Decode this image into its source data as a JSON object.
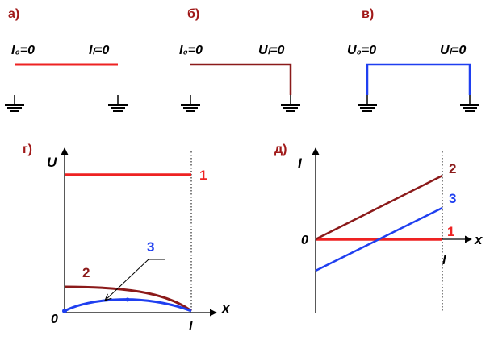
{
  "colors": {
    "red": "#ee2222",
    "brown": "#8b1a1a",
    "blue": "#1f3ff0",
    "label": "#a01818",
    "black": "#000000"
  },
  "panels": {
    "a": {
      "letter": "а)",
      "left_bc": "I₀=0",
      "right_bc": "Iₗ=0"
    },
    "b": {
      "letter": "б)",
      "left_bc": "I₀=0",
      "right_bc": "Uₗ=0"
    },
    "v": {
      "letter": "в)",
      "left_bc": "U₀=0",
      "right_bc": "Uₗ=0"
    },
    "g": {
      "letter": "г)",
      "y_axis": "U",
      "x_axis": "x",
      "origin": "0",
      "end_mark": "l",
      "curve_labels": [
        "1",
        "2",
        "3"
      ]
    },
    "d": {
      "letter": "д)",
      "y_axis": "I",
      "x_axis": "x",
      "origin": "0",
      "end_mark": "l",
      "curve_labels": [
        "2",
        "3",
        "1"
      ]
    }
  }
}
